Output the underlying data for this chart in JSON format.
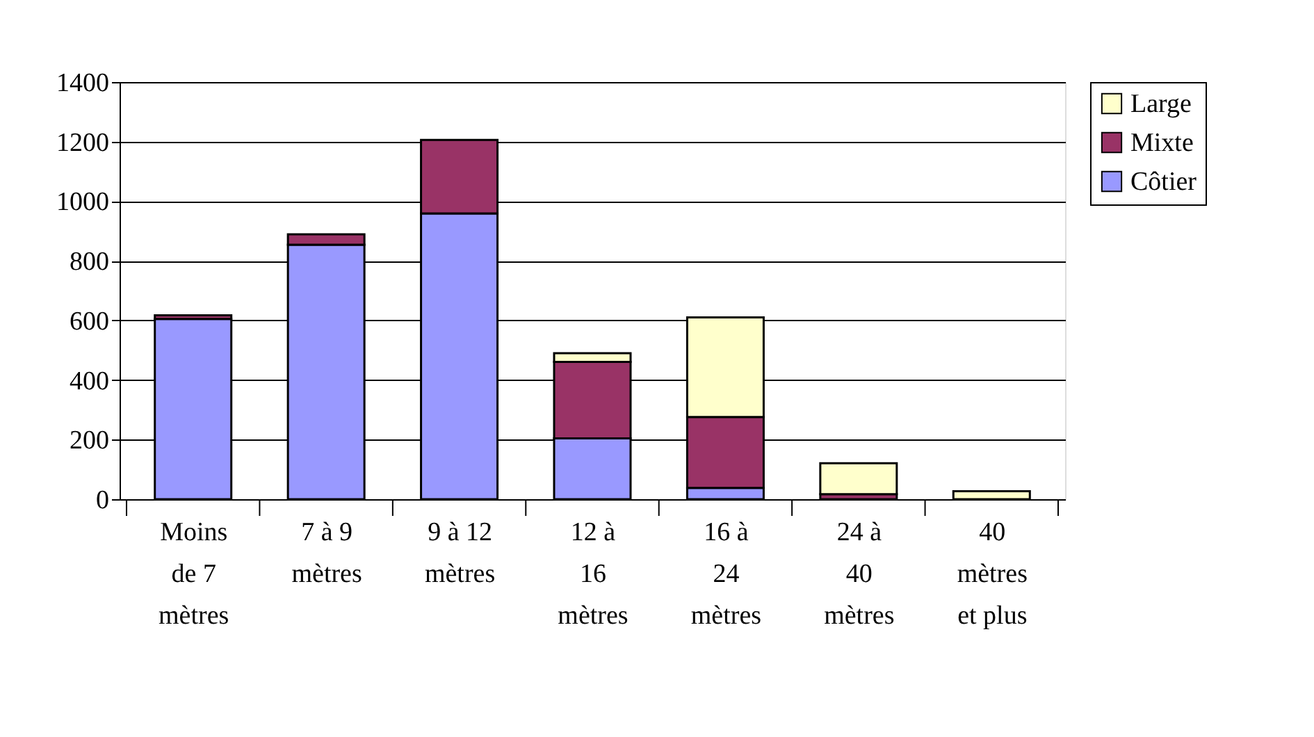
{
  "chart_data": {
    "type": "bar",
    "stacked": true,
    "categories": [
      "Moins\nde 7\nmètres",
      "7 à 9\nmètres",
      "9 à 12\nmètres",
      "12 à\n16\nmètres",
      "16 à\n24\nmètres",
      "24 à\n40\nmètres",
      "40\nmètres\net plus"
    ],
    "series": [
      {
        "name": "Côtier",
        "color": "#9999ff",
        "values": [
          605,
          854,
          959,
          204,
          38,
          null,
          null
        ]
      },
      {
        "name": "Mixte",
        "color": "#993366",
        "values": [
          12,
          35,
          247,
          257,
          238,
          17,
          null
        ]
      },
      {
        "name": "Large",
        "color": "#ffffcc",
        "values": [
          null,
          null,
          null,
          29,
          334,
          104,
          27
        ]
      }
    ],
    "ylim": [
      0,
      1400
    ],
    "yticks": [
      0,
      200,
      400,
      600,
      800,
      1000,
      1200,
      1400
    ],
    "grid": "y",
    "legend": "right"
  }
}
